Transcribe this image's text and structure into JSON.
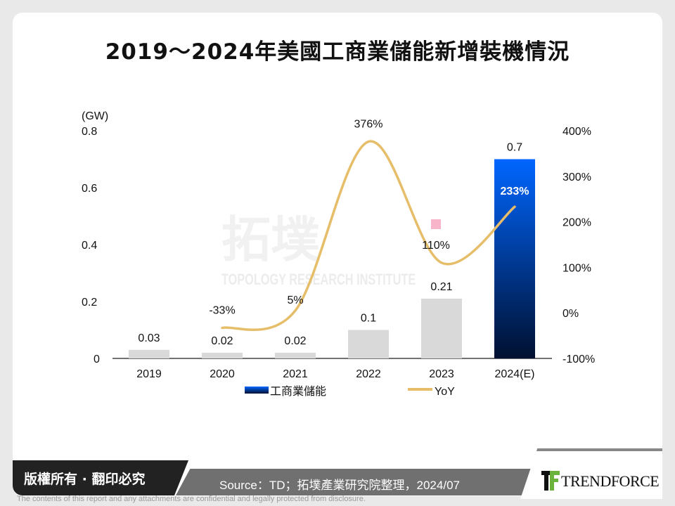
{
  "title": "2019～2024年美國工商業儲能新增裝機情況",
  "watermark": {
    "cn": "拓墣",
    "en": "TOPOLOGY RESEARCH INSTITUTE"
  },
  "chart_data": {
    "type": "bar+line",
    "categories": [
      "2019",
      "2020",
      "2021",
      "2022",
      "2023",
      "2024(E)"
    ],
    "ylabel_left": "(GW)",
    "ylim_left": [
      0,
      0.8
    ],
    "yticks_left": [
      "0",
      "0.2",
      "0.4",
      "0.6",
      "0.8"
    ],
    "ylim_right": [
      -100,
      400
    ],
    "yticks_right": [
      "-100%",
      "0%",
      "100%",
      "200%",
      "300%",
      "400%"
    ],
    "series": [
      {
        "name": "工商業儲能",
        "type": "bar",
        "values": [
          0.03,
          0.02,
          0.02,
          0.1,
          0.21,
          0.7
        ],
        "labels": [
          "0.03",
          "0.02",
          "0.02",
          "0.1",
          "0.21",
          "0.7"
        ],
        "color": "#d9d9d9",
        "highlight_color_top": "#0066ff",
        "highlight_color_bottom": "#001030"
      },
      {
        "name": "YoY",
        "type": "line",
        "values": [
          null,
          -33,
          5,
          376,
          110,
          233
        ],
        "labels": [
          "",
          "-33%",
          "5%",
          "376%",
          "110%",
          "233%"
        ],
        "color": "#e6be6a"
      }
    ],
    "legend_position": "bottom",
    "grid": false
  },
  "footer": {
    "copyright": "版權所有 · 翻印必究",
    "source": "Source：TD；拓墣產業研究院整理，2024/07",
    "brand": "TRENDFORCE",
    "disclaimer": "The contents of this report and any attachments are confidential and legally protected from disclosure."
  }
}
